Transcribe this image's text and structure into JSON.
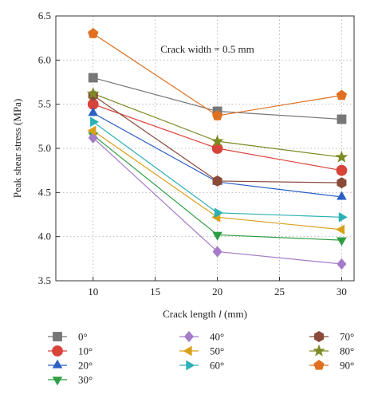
{
  "chart_data": {
    "type": "line",
    "title": "",
    "xlabel_prefix": "Crack length ",
    "xlabel_var": "l",
    "xlabel_suffix": " (mm)",
    "ylabel": "Peak shear stress (MPa)",
    "annotation": "Crack width = 0.5 mm",
    "x": [
      10,
      20,
      30
    ],
    "xlim": [
      7,
      31
    ],
    "ylim": [
      3.5,
      6.5
    ],
    "xticks": [
      10,
      15,
      20,
      25,
      30
    ],
    "yticks": [
      3.5,
      4.0,
      4.5,
      5.0,
      5.5,
      6.0,
      6.5
    ],
    "xtick_labels": [
      "10",
      "15",
      "20",
      "25",
      "30"
    ],
    "ytick_labels": [
      "3.5",
      "4.0",
      "4.5",
      "5.0",
      "5.5",
      "6.0",
      "6.5"
    ],
    "grid": true,
    "legend_position": "below",
    "series": [
      {
        "name": "0°",
        "values": [
          5.8,
          5.42,
          5.33
        ],
        "color": "#777777",
        "marker": "square"
      },
      {
        "name": "10°",
        "values": [
          5.5,
          5.0,
          4.75
        ],
        "color": "#d9443a",
        "marker": "circle"
      },
      {
        "name": "20°",
        "values": [
          5.4,
          4.62,
          4.45
        ],
        "color": "#2b5fc4",
        "marker": "triangle-up"
      },
      {
        "name": "30°",
        "values": [
          5.15,
          4.02,
          3.96
        ],
        "color": "#2e9e44",
        "marker": "triangle-down"
      },
      {
        "name": "40°",
        "values": [
          5.12,
          3.83,
          3.69
        ],
        "color": "#a57cc9",
        "marker": "diamond"
      },
      {
        "name": "50°",
        "values": [
          5.2,
          4.22,
          4.08
        ],
        "color": "#d9a01a",
        "marker": "triangle-left"
      },
      {
        "name": "60°",
        "values": [
          5.3,
          4.27,
          4.22
        ],
        "color": "#2ab0b5",
        "marker": "triangle-right"
      },
      {
        "name": "70°",
        "values": [
          5.6,
          4.63,
          4.61
        ],
        "color": "#8a4a3a",
        "marker": "hexagon"
      },
      {
        "name": "80°",
        "values": [
          5.62,
          5.08,
          4.9
        ],
        "color": "#7d8a25",
        "marker": "star"
      },
      {
        "name": "90°",
        "values": [
          6.3,
          5.37,
          5.6
        ],
        "color": "#e07020",
        "marker": "pentagon"
      }
    ]
  }
}
